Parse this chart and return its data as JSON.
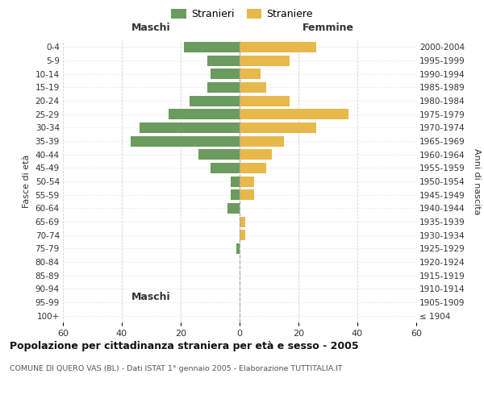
{
  "age_groups": [
    "100+",
    "95-99",
    "90-94",
    "85-89",
    "80-84",
    "75-79",
    "70-74",
    "65-69",
    "60-64",
    "55-59",
    "50-54",
    "45-49",
    "40-44",
    "35-39",
    "30-34",
    "25-29",
    "20-24",
    "15-19",
    "10-14",
    "5-9",
    "0-4"
  ],
  "birth_years": [
    "≤ 1904",
    "1905-1909",
    "1910-1914",
    "1915-1919",
    "1920-1924",
    "1925-1929",
    "1930-1934",
    "1935-1939",
    "1940-1944",
    "1945-1949",
    "1950-1954",
    "1955-1959",
    "1960-1964",
    "1965-1969",
    "1970-1974",
    "1975-1979",
    "1980-1984",
    "1985-1989",
    "1990-1994",
    "1995-1999",
    "2000-2004"
  ],
  "maschi": [
    0,
    0,
    0,
    0,
    0,
    1,
    0,
    0,
    4,
    3,
    3,
    10,
    14,
    37,
    34,
    24,
    17,
    11,
    10,
    11,
    19
  ],
  "femmine": [
    0,
    0,
    0,
    0,
    0,
    0,
    2,
    2,
    0,
    5,
    5,
    9,
    11,
    15,
    26,
    37,
    17,
    9,
    7,
    17,
    26
  ],
  "color_maschi": "#6b9b5e",
  "color_femmine": "#e8b84b",
  "xlim": 60,
  "title": "Popolazione per cittadinanza straniera per età e sesso - 2005",
  "subtitle": "COMUNE DI QUERO VAS (BL) - Dati ISTAT 1° gennaio 2005 - Elaborazione TUTTITALIA.IT",
  "ylabel_left": "Fasce di età",
  "ylabel_right": "Anni di nascita",
  "label_maschi": "Stranieri",
  "label_femmine": "Straniere",
  "header_left": "Maschi",
  "header_right": "Femmine",
  "bg_color": "#ffffff",
  "grid_color": "#cccccc"
}
